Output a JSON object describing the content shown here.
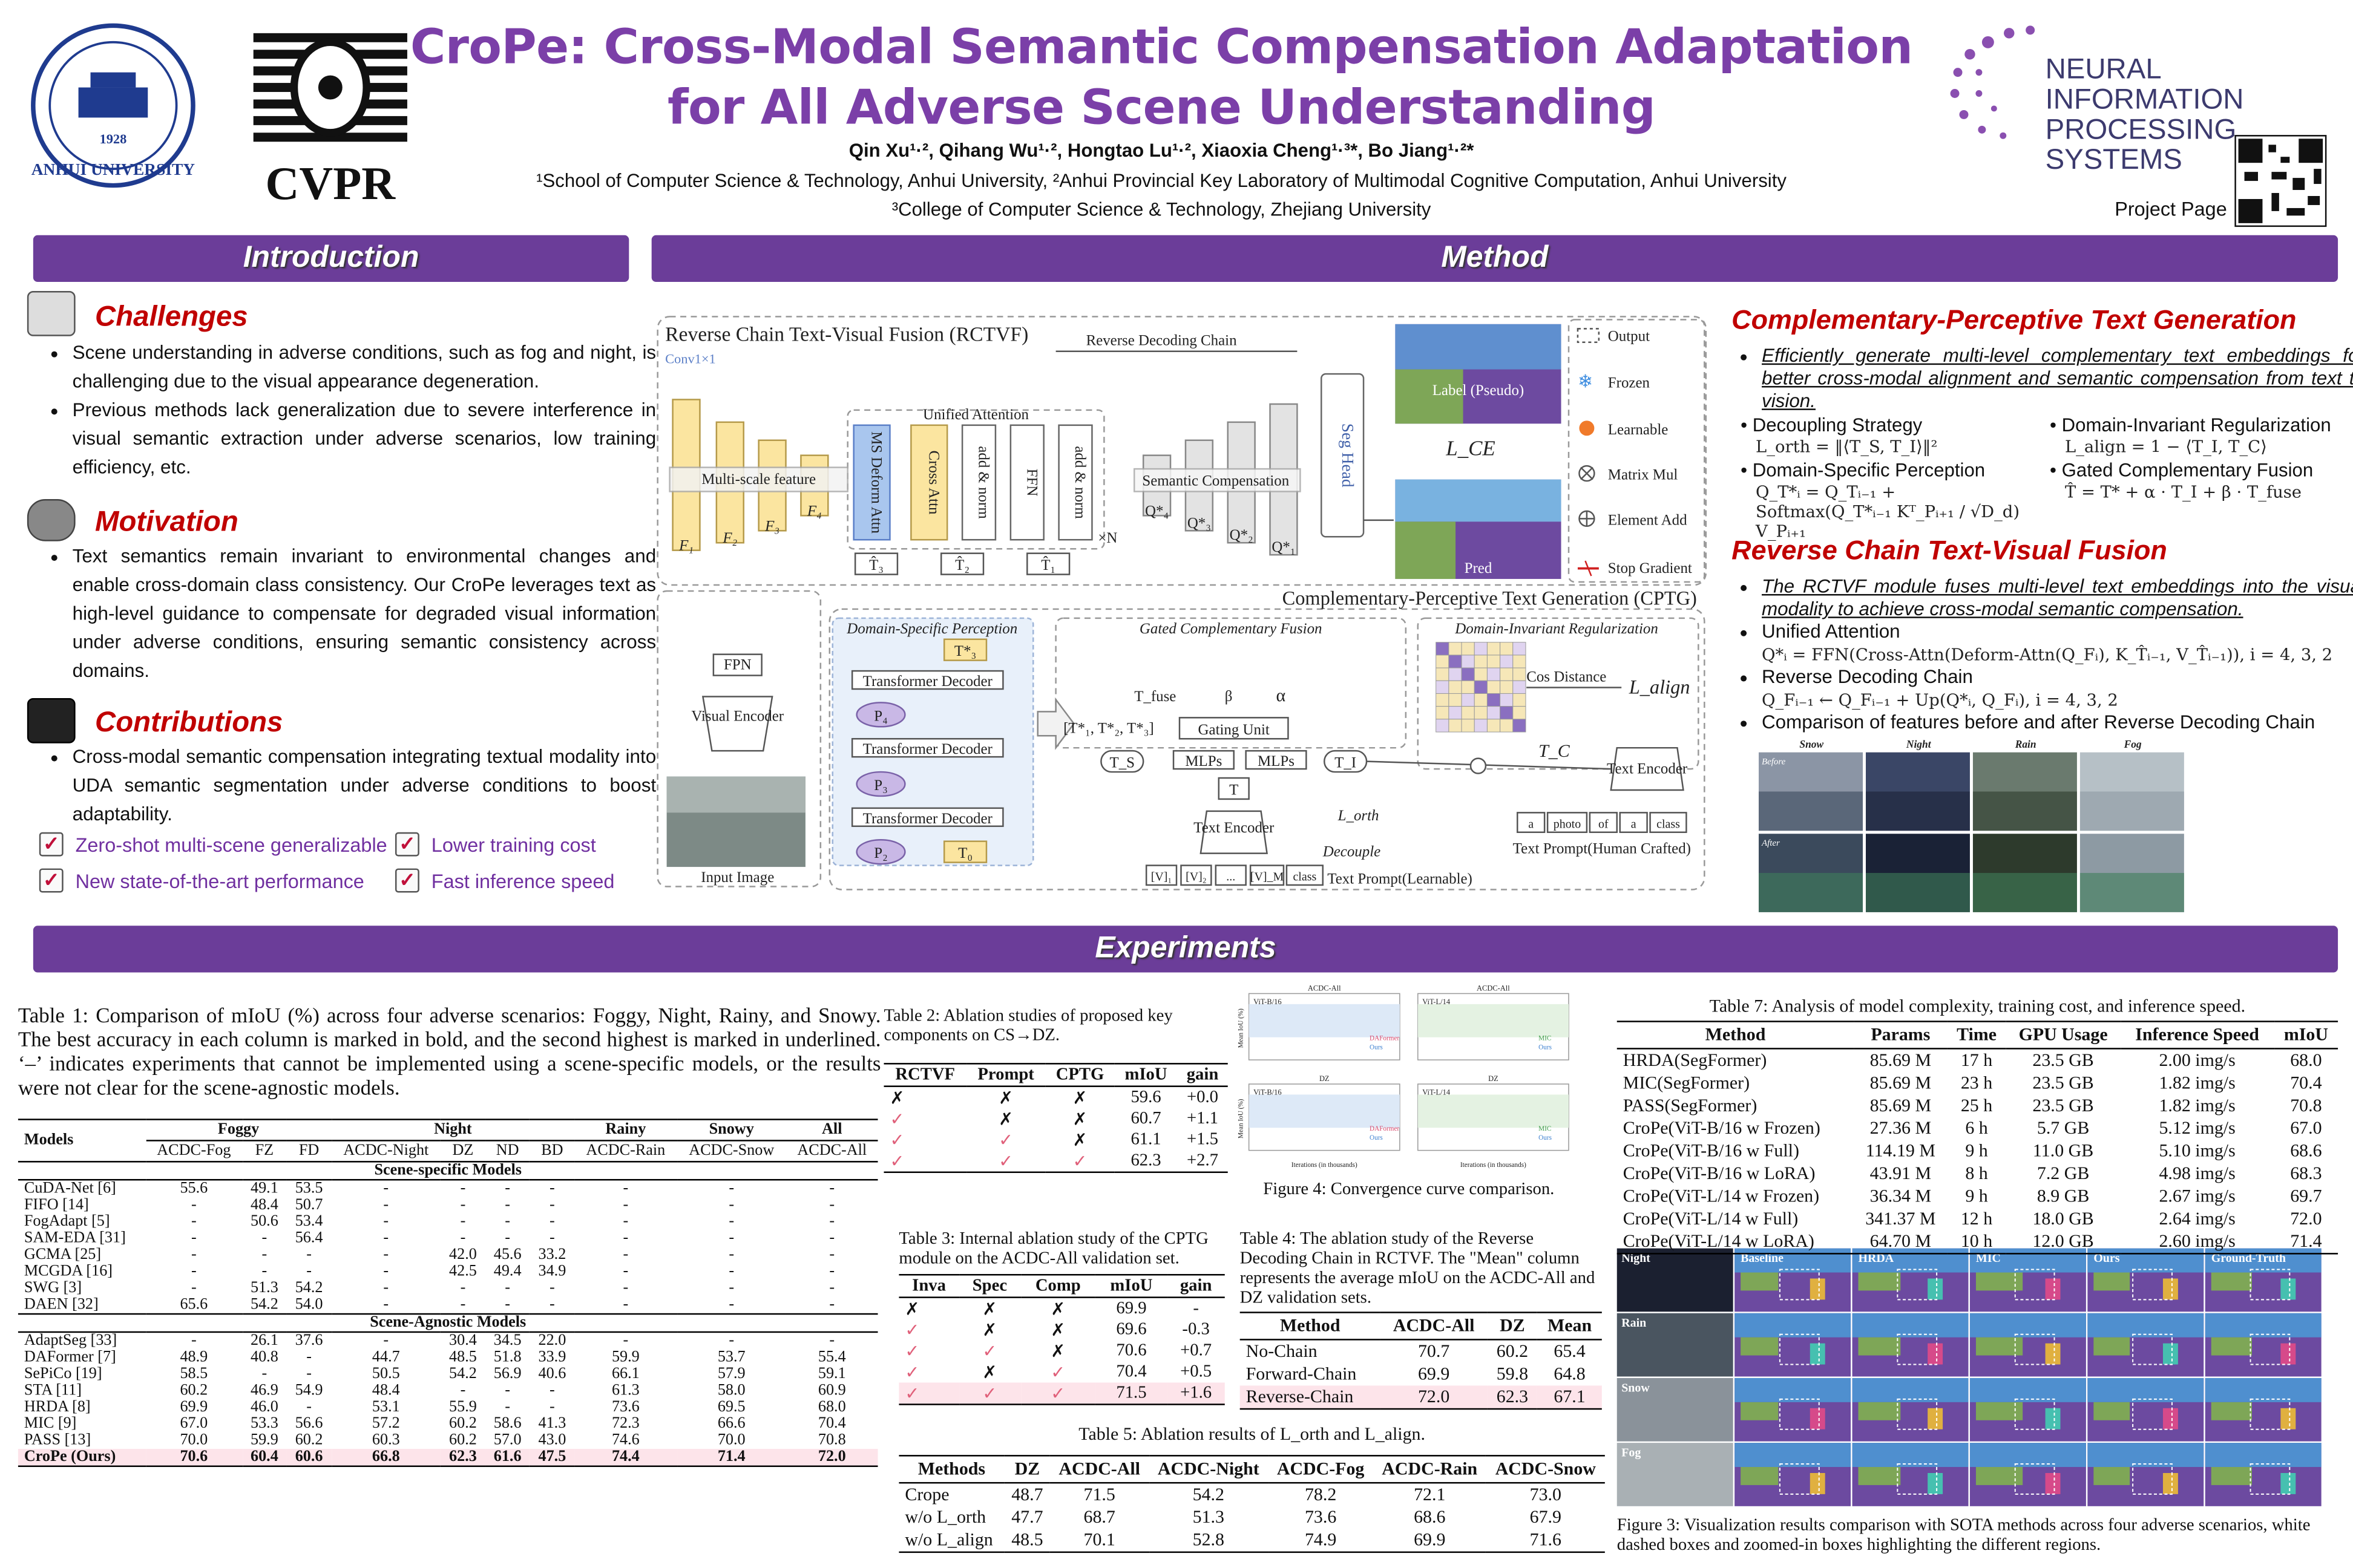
{
  "header": {
    "title_line1": "CroPe: Cross-Modal Semantic Compensation Adaptation",
    "title_line2": "for All Adverse Scene Understanding",
    "authors": "Qin Xu¹·², Qihang Wu¹·², Hongtao Lu¹·², Xiaoxia Cheng¹·³*, Bo Jiang¹·²*",
    "affiliation1": "¹School of Computer Science & Technology, Anhui University, ²Anhui Provincial Key Laboratory of Multimodal Cognitive Computation, Anhui University",
    "affiliation2": "³College of Computer Science & Technology, Zhejiang University",
    "university_name": "ANHUI UNIVERSITY",
    "university_year": "1928",
    "cvpr": "CVPR",
    "neurips": [
      "NEURAL INFORMATION",
      "PROCESSING SYSTEMS"
    ],
    "project_page": "Project Page"
  },
  "intro": {
    "heading": "Introduction",
    "challenges": {
      "title": "Challenges",
      "bullets": [
        "Scene understanding in adverse conditions, such as fog and night, is challenging due to the visual appearance degeneration.",
        "Previous methods lack generalization due to severe interference in visual semantic extraction under adverse scenarios, low training efficiency, etc."
      ]
    },
    "motivation": {
      "title": "Motivation",
      "bullets": [
        "Text semantics remain invariant to environmental changes and enable cross-domain class consistency. Our CroPe leverages text as high-level guidance to compensate for degraded visual information under adverse conditions, ensuring semantic consistency across domains."
      ]
    },
    "contributions": {
      "title": "Contributions",
      "bullets": [
        "Cross-modal semantic compensation integrating textual modality into UDA semantic segmentation under adverse conditions to boost adaptability."
      ],
      "highlights": [
        "Zero-shot multi-scene generalizable",
        "Lower training cost",
        "New state-of-the-art performance",
        "Fast inference speed"
      ]
    }
  },
  "method": {
    "heading": "Method",
    "diagram": {
      "rctvf_title": "Reverse Chain Text-Visual Fusion (RCTVF)",
      "conv": "Conv1×1",
      "reverse_chain": "Reverse Decoding Chain",
      "unified_attention": "Unified Attention",
      "multiscale": "Multi-scale feature",
      "features": [
        "F₁",
        "F₂",
        "F₃",
        "F₄"
      ],
      "ms_deform": "MS Deform Attn",
      "cross_attn": "Cross Attn",
      "add_norm": "add & norm",
      "ffn": "FFN",
      "times_n": "×N",
      "semantic_comp": "Semantic Compensation",
      "queries": [
        "Q*₄",
        "Q*₃",
        "Q*₂",
        "Q*₁"
      ],
      "seg_head": "Seg Head",
      "label": "Label (Pseudo)",
      "pred": "Pred",
      "loss_ce": "L_CE",
      "text_tokens": [
        "T̂₃",
        "T̂₂",
        "T̂₁"
      ],
      "legend": [
        "Output",
        "Frozen",
        "Learnable",
        "Matrix Mul",
        "Element Add",
        "Stop Gradient"
      ],
      "cptg_title": "Complementary-Perceptive Text Generation (CPTG)",
      "dsp": "Domain-Specific Perception",
      "gcf": "Gated Complementary Fusion",
      "dir": "Domain-Invariant Regularization",
      "transformer_decoder": "Transformer Decoder",
      "p_tokens": [
        "P₄",
        "P₃",
        "P₂"
      ],
      "t_top": "T*₃",
      "t_bottom": "T₀",
      "fpn": "FPN",
      "visual_encoder": "Visual Encoder",
      "input_image": "Input Image",
      "t_fuse": "T_fuse",
      "alpha": "α",
      "beta": "β",
      "gating_unit": "Gating Unit",
      "t_star": "[T*₁, T*₂, T*₃]",
      "ts": "T_S",
      "ti": "T_I",
      "t": "T",
      "mlps": "MLPs",
      "text_encoder": "Text Encoder",
      "l_orth": "L_orth",
      "decouple": "Decouple",
      "prompt_learnable": [
        "[V]₁",
        "[V]₂",
        "...",
        "[V]_M",
        "class"
      ],
      "prompt_learnable_label": "Text Prompt(Learnable)",
      "cos_distance": "Cos Distance",
      "l_align": "L_align",
      "tc": "T_C",
      "prompt_crafted": [
        "a",
        "photo",
        "of",
        "a",
        "class"
      ],
      "prompt_crafted_label": "Text Prompt(Human Crafted)"
    },
    "cptg": {
      "title": "Complementary-Perceptive Text Generation",
      "lead": "Efficiently generate multi-level complementary text embeddings for better cross-modal alignment and semantic compensation from text to vision.",
      "items": [
        {
          "name": "Decoupling Strategy",
          "formula": "L_orth = ‖⟨T_S, T_I⟩‖²"
        },
        {
          "name": "Domain-Invariant Regularization",
          "formula": "L_align = 1 − ⟨T_I, T_C⟩"
        },
        {
          "name": "Domain-Specific Perception",
          "formula": "Q_T*ᵢ = Q_Tᵢ₋₁ + Softmax(Q_T*ᵢ₋₁ Kᵀ_Pᵢ₊₁ / √D_d) V_Pᵢ₊₁"
        },
        {
          "name": "Gated Complementary Fusion",
          "formula": "T̂ = T* + α · T_I + β · T_fuse"
        }
      ]
    },
    "rctvf": {
      "title": "Reverse Chain Text-Visual Fusion",
      "lead": "The RCTVF module fuses multi-level text embeddings into the visual modality to achieve cross-modal semantic compensation.",
      "items": [
        {
          "name": "Unified Attention",
          "formula": "Q*ᵢ = FFN(Cross-Attn(Deform-Attn(Q_Fᵢ), K_T̂ᵢ₋₁, V_T̂ᵢ₋₁)), i = 4, 3, 2"
        },
        {
          "name": "Reverse Decoding Chain",
          "formula": "Q_Fᵢ₋₁ ← Q_Fᵢ₋₁ + Up(Q*ᵢ, Q_Fᵢ), i = 4, 3, 2"
        },
        {
          "name": "Comparison of features before and after Reverse Decoding Chain"
        }
      ],
      "image_cols": [
        "Snow",
        "Night",
        "Rain",
        "Fog"
      ],
      "image_rows": [
        "Before",
        "After"
      ]
    }
  },
  "experiments": {
    "heading": "Experiments",
    "table1": {
      "caption": "Table 1: Comparison of mIoU (%) across four adverse scenarios: Foggy, Night, Rainy, and Snowy. The best accuracy in each column is marked in bold, and the second highest is marked in underlined. ‘–’ indicates experiments that cannot be implemented using a scene-specific models, or the results were not clear for the scene-agnostic models.",
      "groups": [
        "Models",
        "Foggy",
        "Night",
        "Rainy",
        "Snowy",
        "All"
      ],
      "columns": [
        "ACDC-Fog",
        "FZ",
        "FD",
        "ACDC-Night",
        "DZ",
        "ND",
        "BD",
        "ACDC-Rain",
        "ACDC-Snow",
        "ACDC-All"
      ],
      "sections": [
        {
          "title": "Scene-specific Models",
          "rows": [
            [
              "CuDA-Net [6]",
              "55.6",
              "49.1",
              "53.5",
              "-",
              "-",
              "-",
              "-",
              "-",
              "-",
              "-"
            ],
            [
              "FIFO [14]",
              "-",
              "48.4",
              "50.7",
              "-",
              "-",
              "-",
              "-",
              "-",
              "-",
              "-"
            ],
            [
              "FogAdapt [5]",
              "-",
              "50.6",
              "53.4",
              "-",
              "-",
              "-",
              "-",
              "-",
              "-",
              "-"
            ],
            [
              "SAM-EDA [31]",
              "-",
              "-",
              "56.4",
              "-",
              "-",
              "-",
              "-",
              "-",
              "-",
              "-"
            ],
            [
              "GCMA [25]",
              "-",
              "-",
              "-",
              "-",
              "42.0",
              "45.6",
              "33.2",
              "-",
              "-",
              "-"
            ],
            [
              "MCGDA [16]",
              "-",
              "-",
              "-",
              "-",
              "42.5",
              "49.4",
              "34.9",
              "-",
              "-",
              "-"
            ],
            [
              "SWG [3]",
              "-",
              "51.3",
              "54.2",
              "-",
              "-",
              "-",
              "-",
              "-",
              "-",
              "-"
            ],
            [
              "DAEN [32]",
              "65.6",
              "54.2",
              "54.0",
              "-",
              "-",
              "-",
              "-",
              "-",
              "-",
              "-"
            ]
          ]
        },
        {
          "title": "Scene-Agnostic Models",
          "rows": [
            [
              "AdaptSeg [33]",
              "-",
              "26.1",
              "37.6",
              "-",
              "30.4",
              "34.5",
              "22.0",
              "-",
              "-",
              "-"
            ],
            [
              "DAFormer [7]",
              "48.9",
              "40.8",
              "-",
              "44.7",
              "48.5",
              "51.8",
              "33.9",
              "59.9",
              "53.7",
              "55.4"
            ],
            [
              "SePiCo [19]",
              "58.5",
              "-",
              "-",
              "50.5",
              "54.2",
              "56.9",
              "40.6",
              "66.1",
              "57.9",
              "59.1"
            ],
            [
              "STA [11]",
              "60.2",
              "46.9",
              "54.9",
              "48.4",
              "-",
              "-",
              "-",
              "61.3",
              "58.0",
              "60.9"
            ],
            [
              "HRDA [8]",
              "69.9",
              "46.0",
              "-",
              "53.1",
              "55.9",
              "-",
              "-",
              "73.6",
              "69.5",
              "68.0"
            ],
            [
              "MIC [9]",
              "67.0",
              "53.3",
              "56.6",
              "57.2",
              "60.2",
              "58.6",
              "41.3",
              "72.3",
              "66.6",
              "70.4"
            ],
            [
              "PASS [13]",
              "70.0",
              "59.9",
              "60.2",
              "60.3",
              "60.2",
              "57.0",
              "43.0",
              "74.6",
              "70.0",
              "70.8"
            ],
            [
              "CroPe (Ours)",
              "70.6",
              "60.4",
              "60.6",
              "66.8",
              "62.3",
              "61.6",
              "47.5",
              "74.4",
              "71.4",
              "72.0"
            ]
          ]
        }
      ]
    },
    "table2": {
      "caption": "Table 2: Ablation studies of proposed key components on CS→DZ.",
      "header": [
        "RCTVF",
        "Prompt",
        "CPTG",
        "mIoU",
        "gain"
      ],
      "rows": [
        [
          "✗",
          "✗",
          "✗",
          "59.6",
          "+0.0"
        ],
        [
          "✓",
          "✗",
          "✗",
          "60.7",
          "+1.1"
        ],
        [
          "✓",
          "✓",
          "✗",
          "61.1",
          "+1.5"
        ],
        [
          "✓",
          "✓",
          "✓",
          "62.3",
          "+2.7"
        ]
      ]
    },
    "table3": {
      "caption": "Table 3: Internal ablation study of the CPTG module on the ACDC-All validation set.",
      "header": [
        "Inva",
        "Spec",
        "Comp",
        "mIoU",
        "gain"
      ],
      "rows": [
        [
          "✗",
          "✗",
          "✗",
          "69.9",
          "-"
        ],
        [
          "✓",
          "✗",
          "✗",
          "69.6",
          "-0.3"
        ],
        [
          "✓",
          "✓",
          "✗",
          "70.6",
          "+0.7"
        ],
        [
          "✓",
          "✗",
          "✓",
          "70.4",
          "+0.5"
        ],
        [
          "✓",
          "✓",
          "✓",
          "71.5",
          "+1.6"
        ]
      ]
    },
    "table4": {
      "caption": "Table 4: The ablation study of the Reverse Decoding Chain in RCTVF. The \"Mean\" column represents the average mIoU on the ACDC-All and DZ validation sets.",
      "header": [
        "Method",
        "ACDC-All",
        "DZ",
        "Mean"
      ],
      "rows": [
        [
          "No-Chain",
          "70.7",
          "60.2",
          "65.4"
        ],
        [
          "Forward-Chain",
          "69.9",
          "59.8",
          "64.8"
        ],
        [
          "Reverse-Chain",
          "72.0",
          "62.3",
          "67.1"
        ]
      ]
    },
    "table5": {
      "caption": "Table 5: Ablation results of L_orth and L_align.",
      "header": [
        "Methods",
        "DZ",
        "ACDC-All",
        "ACDC-Night",
        "ACDC-Fog",
        "ACDC-Rain",
        "ACDC-Snow"
      ],
      "rows": [
        [
          "Crope",
          "48.7",
          "71.5",
          "54.2",
          "78.2",
          "72.1",
          "73.0"
        ],
        [
          "w/o L_orth",
          "47.7",
          "68.7",
          "51.3",
          "73.6",
          "68.6",
          "67.9"
        ],
        [
          "w/o L_align",
          "48.5",
          "70.1",
          "52.8",
          "74.9",
          "69.9",
          "71.6"
        ]
      ]
    },
    "table7": {
      "caption": "Table 7: Analysis of model complexity, training cost, and inference speed.",
      "header": [
        "Method",
        "Params",
        "Time",
        "GPU Usage",
        "Inference Speed",
        "mIoU"
      ],
      "rows": [
        [
          "HRDA(SegFormer)",
          "85.69 M",
          "17 h",
          "23.5 GB",
          "2.00 img/s",
          "68.0"
        ],
        [
          "MIC(SegFormer)",
          "85.69 M",
          "23 h",
          "23.5 GB",
          "1.82 img/s",
          "70.4"
        ],
        [
          "PASS(SegFormer)",
          "85.69 M",
          "25 h",
          "23.5 GB",
          "1.82 img/s",
          "70.8"
        ],
        [
          "CroPe(ViT-B/16 w Frozen)",
          "27.36 M",
          "6 h",
          "5.7 GB",
          "5.12 img/s",
          "67.0"
        ],
        [
          "CroPe(ViT-B/16 w Full)",
          "114.19 M",
          "9 h",
          "11.0 GB",
          "5.10 img/s",
          "68.6"
        ],
        [
          "CroPe(ViT-B/16 w LoRA)",
          "43.91 M",
          "8 h",
          "7.2 GB",
          "4.98 img/s",
          "68.3"
        ],
        [
          "CroPe(ViT-L/14 w Frozen)",
          "36.34 M",
          "9 h",
          "8.9 GB",
          "2.67 img/s",
          "69.7"
        ],
        [
          "CroPe(ViT-L/14 w Full)",
          "341.37 M",
          "12 h",
          "18.0 GB",
          "2.64 img/s",
          "72.0"
        ],
        [
          "CroPe(ViT-L/14 w LoRA)",
          "64.70 M",
          "10 h",
          "12.0 GB",
          "2.60 img/s",
          "71.4"
        ]
      ]
    },
    "figure4": {
      "caption": "Figure 4: Convergence curve comparison.",
      "panels": [
        {
          "dataset": "ACDC-All",
          "backbone": "ViT-B/16",
          "legend": [
            "DAFormer",
            "Ours"
          ]
        },
        {
          "dataset": "ACDC-All",
          "backbone": "ViT-L/14",
          "legend": [
            "MIC",
            "Ours"
          ]
        },
        {
          "dataset": "DZ",
          "backbone": "ViT-B/16",
          "legend": [
            "DAFormer",
            "Ours"
          ]
        },
        {
          "dataset": "DZ",
          "backbone": "ViT-L/14",
          "legend": [
            "MIC",
            "Ours"
          ]
        }
      ],
      "xlabel": "Iterations (in thousands)",
      "ylabel": "Mean IoU (%)"
    },
    "figure3": {
      "caption": "Figure 3: Visualization results comparison with SOTA methods across four adverse scenarios, white dashed boxes and zoomed-in boxes highlighting the different regions.",
      "columns": [
        "Baseline",
        "HRDA",
        "MIC",
        "Ours",
        "Ground-Truth"
      ],
      "rows": [
        "Night",
        "Rain",
        "Snow",
        "Fog"
      ]
    }
  }
}
